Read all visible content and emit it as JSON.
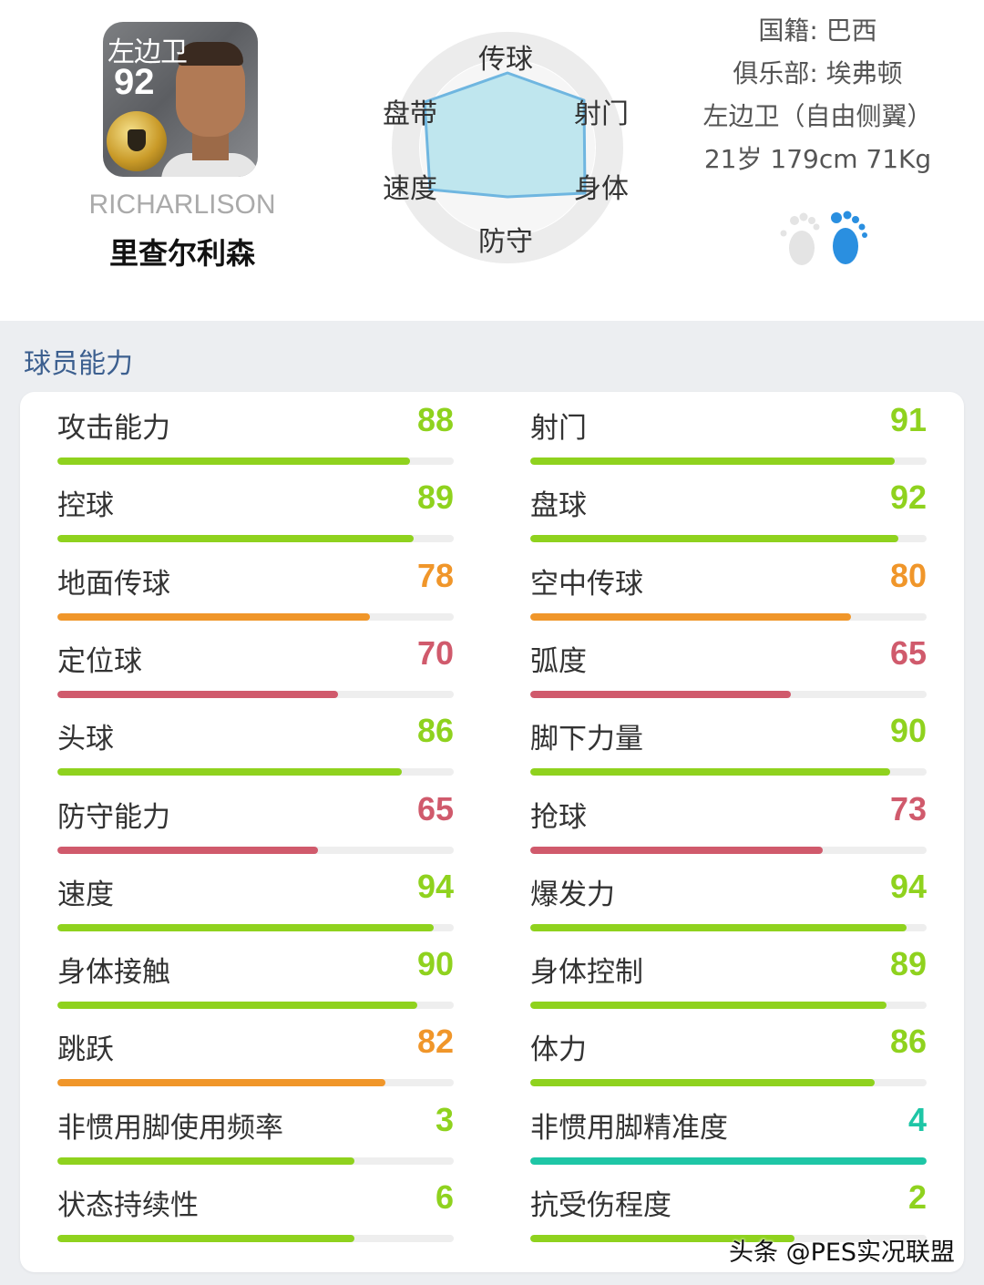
{
  "player": {
    "position": "左边卫",
    "rating": "92",
    "name_en": "RICHARLISON",
    "name_cn": "里查尔利森"
  },
  "radar": {
    "labels": {
      "pass": "传球",
      "dribble": "盘带",
      "shoot": "射门",
      "speed": "速度",
      "physical": "身体",
      "defense": "防守"
    },
    "fill_color": "#bfe6ee",
    "stroke_color": "#6fb6e0"
  },
  "info": {
    "nationality": "国籍: 巴西",
    "club": "俱乐部: 埃弗顿",
    "position_detail": "左边卫（自由侧翼）",
    "age_height_weight": "21岁 179cm 71Kg"
  },
  "feet": {
    "preferred": "right",
    "icon": "footprint-icon"
  },
  "section_title": "球员能力",
  "colors": {
    "green": "#8fd21e",
    "orange": "#f0962a",
    "red": "#d05a6c",
    "teal": "#1ec6a6"
  },
  "stats_left": [
    {
      "label": "攻击能力",
      "value": 88,
      "max": 99,
      "color": "green"
    },
    {
      "label": "控球",
      "value": 89,
      "max": 99,
      "color": "green"
    },
    {
      "label": "地面传球",
      "value": 78,
      "max": 99,
      "color": "orange"
    },
    {
      "label": "定位球",
      "value": 70,
      "max": 99,
      "color": "red"
    },
    {
      "label": "头球",
      "value": 86,
      "max": 99,
      "color": "green"
    },
    {
      "label": "防守能力",
      "value": 65,
      "max": 99,
      "color": "red"
    },
    {
      "label": "速度",
      "value": 94,
      "max": 99,
      "color": "green"
    },
    {
      "label": "身体接触",
      "value": 90,
      "max": 99,
      "color": "green"
    },
    {
      "label": "跳跃",
      "value": 82,
      "max": 99,
      "color": "orange"
    },
    {
      "label": "非惯用脚使用频率",
      "value": 3,
      "max": 4,
      "color": "green"
    },
    {
      "label": "状态持续性",
      "value": 6,
      "max": 8,
      "color": "green"
    }
  ],
  "stats_right": [
    {
      "label": "射门",
      "value": 91,
      "max": 99,
      "color": "green"
    },
    {
      "label": "盘球",
      "value": 92,
      "max": 99,
      "color": "green"
    },
    {
      "label": "空中传球",
      "value": 80,
      "max": 99,
      "color": "orange"
    },
    {
      "label": "弧度",
      "value": 65,
      "max": 99,
      "color": "red"
    },
    {
      "label": "脚下力量",
      "value": 90,
      "max": 99,
      "color": "green"
    },
    {
      "label": "抢球",
      "value": 73,
      "max": 99,
      "color": "red"
    },
    {
      "label": "爆发力",
      "value": 94,
      "max": 99,
      "color": "green"
    },
    {
      "label": "身体控制",
      "value": 89,
      "max": 99,
      "color": "green"
    },
    {
      "label": "体力",
      "value": 86,
      "max": 99,
      "color": "green"
    },
    {
      "label": "非惯用脚精准度",
      "value": 4,
      "max": 4,
      "color": "teal"
    },
    {
      "label": "抗受伤程度",
      "value": 2,
      "max": 3,
      "color": "green"
    }
  ],
  "watermark": "头条 @PES实况联盟"
}
